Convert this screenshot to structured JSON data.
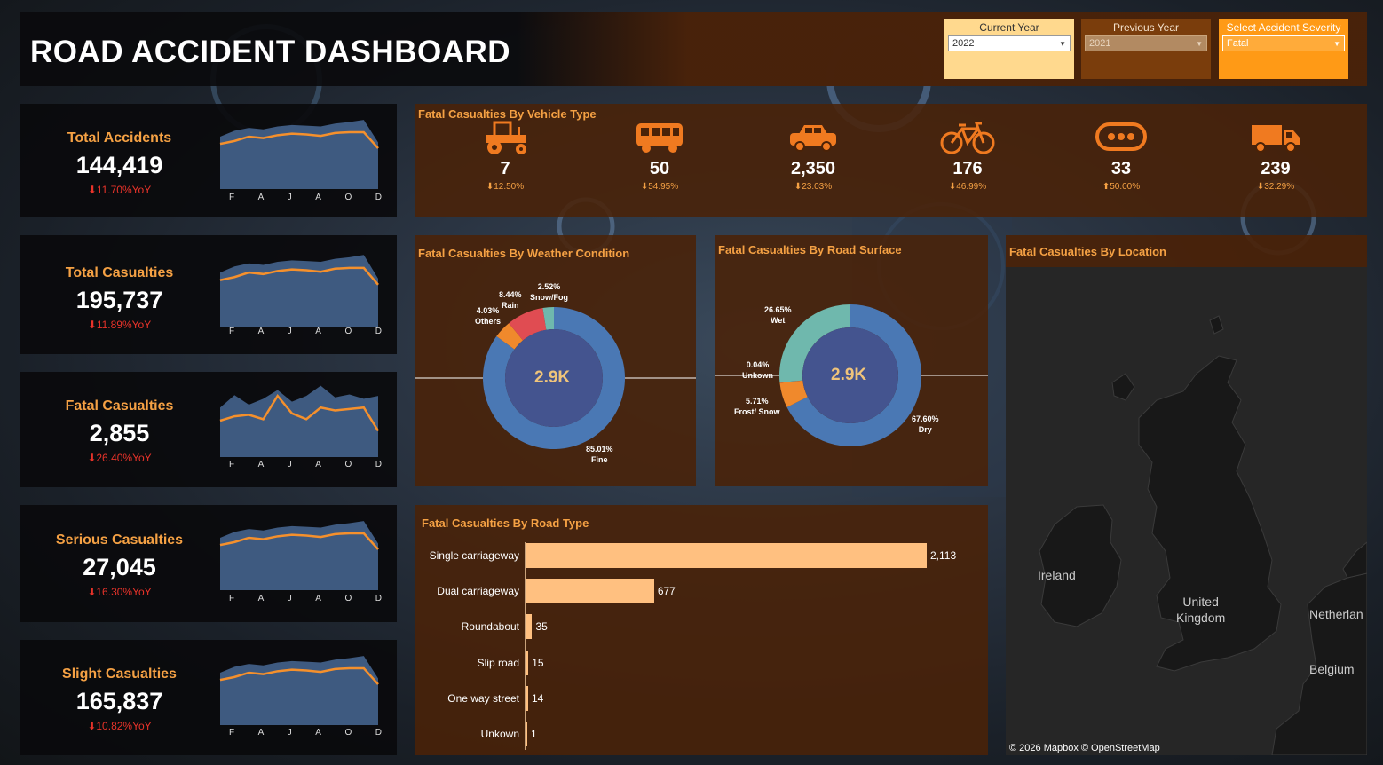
{
  "header": {
    "title": "ROAD ACCIDENT DASHBOARD",
    "filters": [
      {
        "label": "Current Year",
        "value": "2022"
      },
      {
        "label": "Previous Year",
        "value": "2021"
      },
      {
        "label": "Select Accident Severity",
        "value": "Fatal"
      }
    ]
  },
  "months": [
    "F",
    "A",
    "J",
    "A",
    "O",
    "D"
  ],
  "kpis": [
    {
      "label": "Total Accidents",
      "value": "144,419",
      "yoy": "⬇11.70%YoY",
      "trend_area": [
        0.72,
        0.8,
        0.84,
        0.82,
        0.86,
        0.88,
        0.87,
        0.86,
        0.9,
        0.92,
        0.95,
        0.64
      ],
      "trend_line": [
        0.62,
        0.66,
        0.72,
        0.7,
        0.74,
        0.76,
        0.75,
        0.73,
        0.77,
        0.78,
        0.78,
        0.56
      ]
    },
    {
      "label": "Total Casualties",
      "value": "195,737",
      "yoy": "⬇11.89%YoY",
      "trend_area": [
        0.72,
        0.8,
        0.84,
        0.82,
        0.86,
        0.88,
        0.87,
        0.86,
        0.9,
        0.92,
        0.95,
        0.64
      ],
      "trend_line": [
        0.62,
        0.66,
        0.72,
        0.7,
        0.74,
        0.76,
        0.75,
        0.73,
        0.77,
        0.78,
        0.78,
        0.56
      ]
    },
    {
      "label": "Fatal Casualties",
      "value": "2,855",
      "yoy": "⬇26.40%YoY",
      "trend_area": [
        0.68,
        0.85,
        0.72,
        0.8,
        0.92,
        0.76,
        0.84,
        0.98,
        0.82,
        0.86,
        0.8,
        0.84
      ],
      "trend_line": [
        0.5,
        0.56,
        0.58,
        0.52,
        0.84,
        0.6,
        0.52,
        0.68,
        0.64,
        0.66,
        0.68,
        0.36
      ]
    },
    {
      "label": "Serious Casualties",
      "value": "27,045",
      "yoy": "⬇16.30%YoY",
      "trend_area": [
        0.72,
        0.8,
        0.84,
        0.82,
        0.86,
        0.88,
        0.87,
        0.86,
        0.9,
        0.92,
        0.95,
        0.64
      ],
      "trend_line": [
        0.62,
        0.66,
        0.72,
        0.7,
        0.74,
        0.76,
        0.75,
        0.73,
        0.77,
        0.78,
        0.78,
        0.56
      ]
    },
    {
      "label": "Slight Casualties",
      "value": "165,837",
      "yoy": "⬇10.82%YoY",
      "trend_area": [
        0.72,
        0.8,
        0.84,
        0.82,
        0.86,
        0.88,
        0.87,
        0.86,
        0.9,
        0.92,
        0.95,
        0.64
      ],
      "trend_line": [
        0.62,
        0.66,
        0.72,
        0.7,
        0.74,
        0.76,
        0.75,
        0.73,
        0.77,
        0.78,
        0.78,
        0.56
      ]
    }
  ],
  "vehicle": {
    "title": "Fatal Casualties By Vehicle Type",
    "items": [
      {
        "icon": "tractor-icon",
        "value": "7",
        "change": "⬇12.50%"
      },
      {
        "icon": "bus-icon",
        "value": "50",
        "change": "⬇54.95%"
      },
      {
        "icon": "car-icon",
        "value": "2,350",
        "change": "⬇23.03%"
      },
      {
        "icon": "bicycle-icon",
        "value": "176",
        "change": "⬇46.99%"
      },
      {
        "icon": "others-icon",
        "value": "33",
        "change": "⬆50.00%"
      },
      {
        "icon": "truck-icon",
        "value": "239",
        "change": "⬇32.29%"
      }
    ]
  },
  "weather": {
    "title": "Fatal Casualties By Weather Condition",
    "center": "2.9K",
    "labels": [
      {
        "pct": "2.52%",
        "name": "Snow/Fog"
      },
      {
        "pct": "8.44%",
        "name": "Rain"
      },
      {
        "pct": "4.03%",
        "name": "Others"
      },
      {
        "pct": "85.01%",
        "name": "Fine"
      }
    ]
  },
  "surface": {
    "title": "Fatal Casualties By Road Surface",
    "center": "2.9K",
    "labels": [
      {
        "pct": "26.65%",
        "name": "Wet"
      },
      {
        "pct": "0.04%",
        "name": "Unkown"
      },
      {
        "pct": "5.71%",
        "name": "Frost/ Snow"
      },
      {
        "pct": "67.60%",
        "name": "Dry"
      }
    ]
  },
  "chart_data": [
    {
      "type": "pie",
      "title": "Fatal Casualties By Weather Condition",
      "categories": [
        "Fine",
        "Others",
        "Rain",
        "Snow/Fog"
      ],
      "values": [
        85.01,
        4.03,
        8.44,
        2.52
      ],
      "colors": [
        "#4a78b4",
        "#f0892c",
        "#e04c52",
        "#6fb8ad"
      ]
    },
    {
      "type": "pie",
      "title": "Fatal Casualties By Road Surface",
      "categories": [
        "Dry",
        "Frost/ Snow",
        "Unkown",
        "Wet"
      ],
      "values": [
        67.6,
        5.71,
        0.04,
        26.65
      ],
      "colors": [
        "#4a78b4",
        "#f0892c",
        "#e04c52",
        "#6fb8ad"
      ]
    },
    {
      "type": "bar",
      "title": "Fatal Casualties By Road Type",
      "categories": [
        "Single carriageway",
        "Dual carriageway",
        "Roundabout",
        "Slip road",
        "One way street",
        "Unkown"
      ],
      "values": [
        2113,
        677,
        35,
        15,
        14,
        1
      ],
      "value_labels": [
        "2,113",
        "677",
        "35",
        "15",
        "14",
        "1"
      ],
      "orientation": "horizontal",
      "color": "#ffc080"
    }
  ],
  "roadtype": {
    "title": "Fatal Casualties By Road Type"
  },
  "location": {
    "title": "Fatal  Casualties By Location",
    "labels": {
      "ireland": "Ireland",
      "uk_line1": "United",
      "uk_line2": "Kingdom",
      "netherlands": "Netherlan",
      "belgium": "Belgium"
    },
    "attribution": "© 2026 Mapbox  © OpenStreetMap"
  }
}
